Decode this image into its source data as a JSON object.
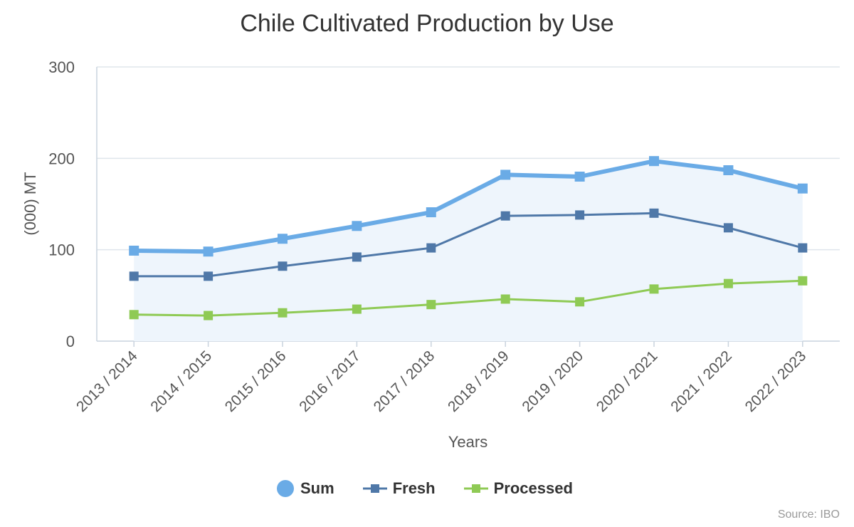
{
  "chart_data": {
    "type": "line",
    "title": "Chile Cultivated Production by Use",
    "xlabel": "Years",
    "ylabel": "(000) MT",
    "categories": [
      "2013 / 2014",
      "2014 / 2015",
      "2015 / 2016",
      "2016 / 2017",
      "2017 / 2018",
      "2018 / 2019",
      "2019 / 2020",
      "2020 / 2021",
      "2021 / 2022",
      "2022 / 2023"
    ],
    "series": [
      {
        "name": "Sum",
        "values": [
          99,
          98,
          112,
          126,
          141,
          182,
          180,
          197,
          187,
          167
        ],
        "color": "#6aabe6",
        "fill": "#eef5fc"
      },
      {
        "name": "Fresh",
        "values": [
          71,
          71,
          82,
          92,
          102,
          137,
          138,
          140,
          124,
          102
        ],
        "color": "#4f78a8"
      },
      {
        "name": "Processed",
        "values": [
          29,
          28,
          31,
          35,
          40,
          46,
          43,
          57,
          63,
          66
        ],
        "color": "#8fca55"
      }
    ],
    "ylim": [
      0,
      300
    ],
    "yticks": [
      "0",
      "100",
      "200",
      "300"
    ],
    "grid": true,
    "legend_position": "bottom-center",
    "source": "Source: IBO"
  }
}
